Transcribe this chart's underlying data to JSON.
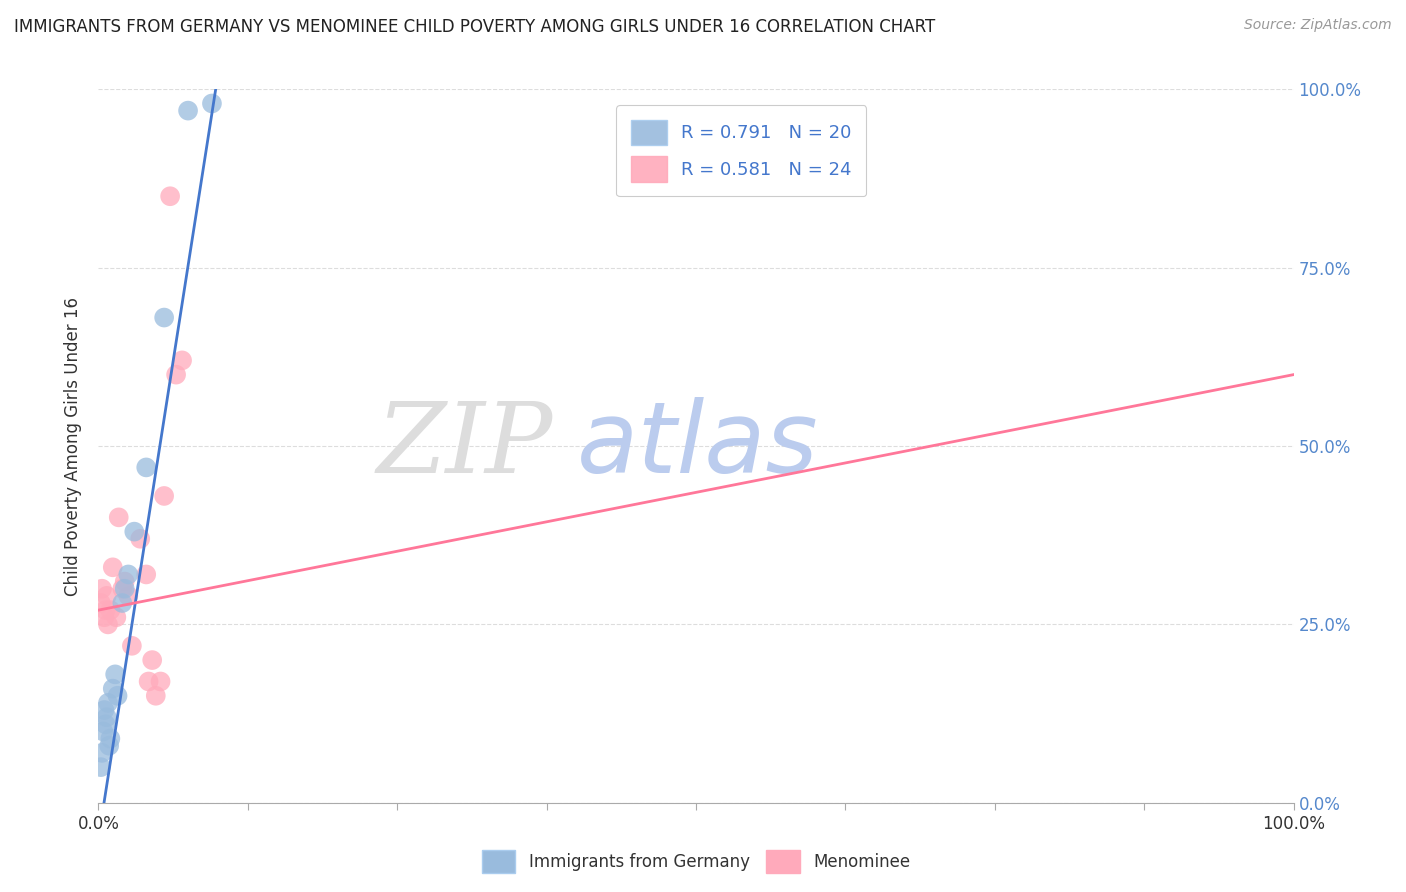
{
  "title": "IMMIGRANTS FROM GERMANY VS MENOMINEE CHILD POVERTY AMONG GIRLS UNDER 16 CORRELATION CHART",
  "source": "Source: ZipAtlas.com",
  "ylabel": "Child Poverty Among Girls Under 16",
  "xlim": [
    0,
    1
  ],
  "ylim": [
    0,
    1
  ],
  "ytick_positions": [
    0.0,
    0.25,
    0.5,
    0.75,
    1.0
  ],
  "legend_label1": "R = 0.791   N = 20",
  "legend_label2": "R = 0.581   N = 24",
  "legend_bottom1": "Immigrants from Germany",
  "legend_bottom2": "Menominee",
  "blue_scatter_x": [
    0.002,
    0.003,
    0.004,
    0.005,
    0.006,
    0.007,
    0.008,
    0.009,
    0.01,
    0.012,
    0.014,
    0.016,
    0.02,
    0.022,
    0.025,
    0.03,
    0.04,
    0.055,
    0.075,
    0.095
  ],
  "blue_scatter_y": [
    0.05,
    0.07,
    0.1,
    0.13,
    0.11,
    0.12,
    0.14,
    0.08,
    0.09,
    0.16,
    0.18,
    0.15,
    0.28,
    0.3,
    0.32,
    0.38,
    0.47,
    0.68,
    0.97,
    0.98
  ],
  "pink_scatter_x": [
    0.002,
    0.003,
    0.005,
    0.006,
    0.007,
    0.008,
    0.01,
    0.012,
    0.015,
    0.017,
    0.02,
    0.022,
    0.025,
    0.028,
    0.035,
    0.04,
    0.042,
    0.045,
    0.048,
    0.052,
    0.055,
    0.06,
    0.065,
    0.07
  ],
  "pink_scatter_y": [
    0.28,
    0.3,
    0.26,
    0.27,
    0.29,
    0.25,
    0.27,
    0.33,
    0.26,
    0.4,
    0.3,
    0.31,
    0.29,
    0.22,
    0.37,
    0.32,
    0.17,
    0.2,
    0.15,
    0.17,
    0.43,
    0.85,
    0.6,
    0.62
  ],
  "blue_line_x": [
    0.0,
    0.1
  ],
  "blue_line_y": [
    -0.05,
    1.02
  ],
  "pink_line_x": [
    0.0,
    1.0
  ],
  "pink_line_y": [
    0.27,
    0.6
  ],
  "blue_color": "#99BBDD",
  "pink_color": "#FFAABB",
  "blue_line_color": "#4477CC",
  "pink_line_color": "#FF7799",
  "grid_color": "#DDDDDD",
  "background_color": "#FFFFFF",
  "title_color": "#222222",
  "watermark_zip_color": "#DDDDDD",
  "watermark_atlas_color": "#BBCCEE",
  "right_tick_color": "#5588CC"
}
